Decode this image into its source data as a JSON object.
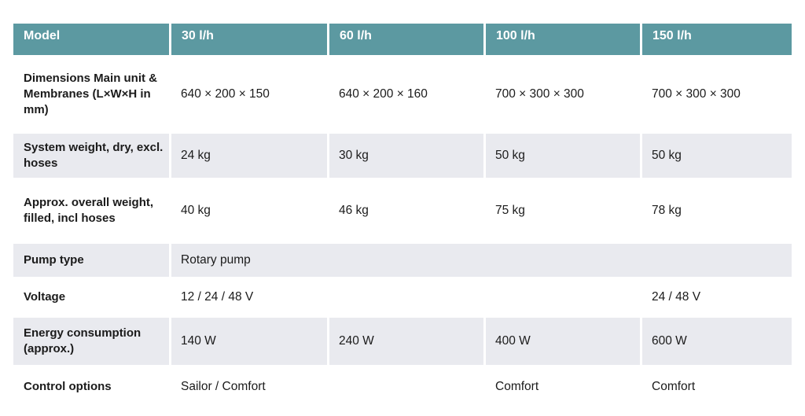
{
  "table": {
    "columns": [
      "Model",
      "30 l/h",
      "60 l/h",
      "100 l/h",
      "150 l/h"
    ],
    "rows": [
      {
        "label": "Dimensions Main unit & Membranes (L×W×H in mm)",
        "values": [
          "640 × 200 × 150",
          "640 × 200 × 160",
          "700 × 300 × 300",
          "700 × 300 × 300"
        ]
      },
      {
        "label": "System weight, dry, excl. hoses",
        "values": [
          "24 kg",
          "30 kg",
          "50 kg",
          "50 kg"
        ]
      },
      {
        "label": "Approx. overall weight, filled, incl hoses",
        "values": [
          "40 kg",
          "46 kg",
          "75 kg",
          "78 kg"
        ]
      },
      {
        "label": "Pump type",
        "values": [
          "Rotary pump"
        ]
      },
      {
        "label": "Voltage",
        "values": [
          "12 / 24 / 48 V",
          "",
          "",
          "24 / 48 V"
        ]
      },
      {
        "label": "Energy consumption (approx.)",
        "values": [
          "140 W",
          "240 W",
          "400 W",
          "600 W"
        ]
      },
      {
        "label": "Control options",
        "values": [
          "Sailor / Comfort",
          "",
          "Comfort",
          "Comfort"
        ]
      }
    ],
    "colors": {
      "header_bg": "#5c99a1",
      "header_text": "#ffffff",
      "row_stripe": "#e9eaef",
      "text": "#1b1b1b"
    }
  }
}
